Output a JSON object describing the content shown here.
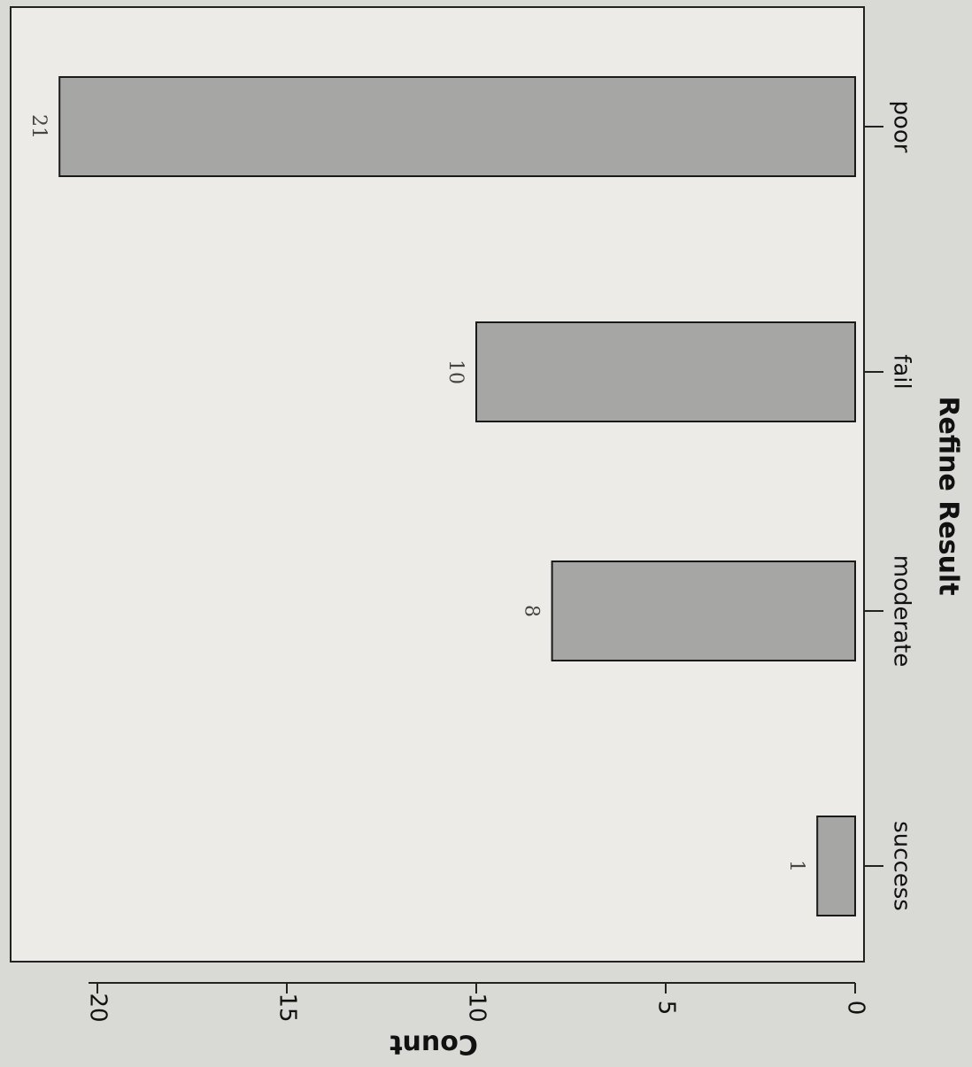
{
  "chart_data": {
    "type": "bar",
    "orientation": "vertical (image rotated 90° clockwise)",
    "categories": [
      "success",
      "moderate",
      "fail",
      "poor"
    ],
    "values": [
      1,
      8,
      10,
      21
    ],
    "data_labels": [
      "1",
      "8",
      "10",
      "21"
    ],
    "xlabel": "Refine Result",
    "ylabel": "Count",
    "ylim": [
      0,
      21
    ],
    "yticks": [
      0,
      5,
      10,
      15,
      20
    ],
    "ytick_labels": [
      "0",
      "5",
      "10",
      "15",
      "20"
    ],
    "grid": false,
    "legend": "none",
    "bar_color": "#a6a6a4"
  }
}
